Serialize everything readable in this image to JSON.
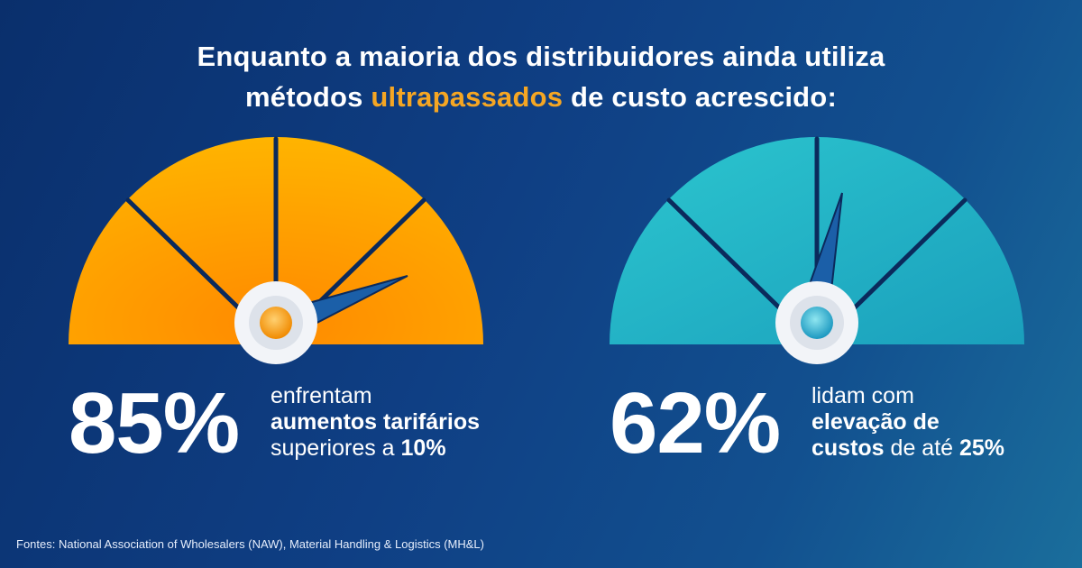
{
  "headline": {
    "line1": "Enquanto a maioria dos distribuidores ainda utiliza",
    "line2_prefix": "métodos ",
    "line2_highlight": "ultrapassados",
    "line2_suffix": " de custo acrescido:",
    "highlight_color": "#f5a623"
  },
  "stats": [
    {
      "percent_label": "85%",
      "percent_value": 85,
      "gauge_color": "#ffa400",
      "description": {
        "line1": "enfrentam",
        "line2_bold": "aumentos tarifários",
        "line3_regular": "superiores a ",
        "line3_bold": "10%"
      }
    },
    {
      "percent_label": "62%",
      "percent_value": 62,
      "gauge_color": "#23b5c6",
      "description": {
        "line1": "lidam com",
        "line2_bold": "elevação de",
        "line3_bold_prefix": "custos",
        "line3_regular": " de até ",
        "line3_bold": "25%"
      }
    }
  ],
  "footnote": "Fontes: National Association of Wholesalers (NAW), Material Handling & Logistics (MH&L)"
}
